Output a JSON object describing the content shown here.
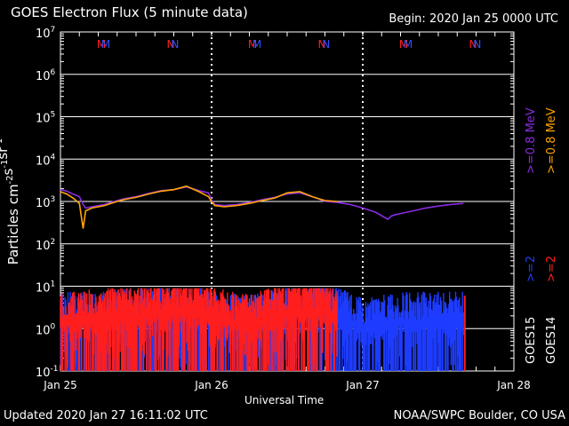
{
  "title": "GOES Electron Flux (5 minute data)",
  "begin": "Begin: 2020 Jan 25 0000 UTC",
  "updated": "Updated 2020 Jan 27 16:11:02 UTC",
  "credit": "NOAA/SWPC Boulder, CO USA",
  "colors": {
    "goes15_08": "#8a2be2",
    "goes14_08": "#ffa500",
    "goes15_2": "#1e3cff",
    "goes14_2": "#ff1e1e",
    "mn_m": "#ff2020",
    "mn_n": "#3050ff"
  },
  "chart_data": {
    "type": "line",
    "xlabel": "Universal Time",
    "ylabel": "Particles cm^-2 s^-1 sr^-1",
    "yscale": "log",
    "ylim": [
      0.1,
      10000000
    ],
    "xlim": [
      0,
      72
    ],
    "x_units": "hours since 2020 Jan 25 00:00 UTC",
    "xticks": [
      "Jan 25",
      "Jan 26",
      "Jan 27",
      "Jan 28"
    ],
    "yticks": [
      "10^-1",
      "10^0",
      "10^1",
      "10^2",
      "10^3",
      "10^4",
      "10^5",
      "10^6",
      "10^7"
    ],
    "threshold": 1000,
    "legend_right": [
      {
        "group": "GOES15",
        "energies": [
          ">=2",
          ">=0.8 MeV"
        ]
      },
      {
        "group": "GOES14",
        "energies": [
          ">=2",
          ">=0.8 MeV"
        ]
      }
    ],
    "markers": {
      "labels": [
        "M",
        "M",
        "N",
        "N"
      ]
    },
    "series": [
      {
        "name": "GOES15 >=0.8 MeV",
        "x": [
          0,
          1,
          2,
          3,
          3.6,
          4,
          5,
          6,
          7,
          8,
          9,
          10,
          12,
          14,
          16,
          18,
          20,
          22,
          23.5,
          24,
          24.5,
          26,
          28,
          30,
          32,
          34,
          36,
          38,
          40,
          42,
          44,
          46,
          48,
          50,
          52,
          52.5,
          53,
          54,
          56,
          58,
          60,
          62,
          64
        ],
        "y": [
          1900,
          1750,
          1500,
          1300,
          850,
          700,
          750,
          800,
          850,
          950,
          1050,
          1150,
          1300,
          1550,
          1800,
          1900,
          2200,
          1800,
          1600,
          1100,
          850,
          800,
          850,
          950,
          1100,
          1250,
          1500,
          1600,
          1300,
          1000,
          950,
          850,
          700,
          560,
          380,
          450,
          480,
          520,
          600,
          700,
          780,
          850,
          900
        ]
      },
      {
        "name": "GOES14 >=0.8 MeV",
        "x": [
          0,
          1,
          2,
          3,
          3.6,
          4,
          5,
          6,
          7,
          8,
          9,
          10,
          12,
          14,
          16,
          18,
          20,
          22,
          23.5,
          24,
          24.5,
          26,
          28,
          30,
          32,
          34,
          36,
          38,
          40,
          42,
          44
        ],
        "y": [
          1700,
          1500,
          1200,
          900,
          230,
          600,
          700,
          750,
          800,
          900,
          1000,
          1100,
          1250,
          1500,
          1750,
          1900,
          2300,
          1700,
          1300,
          1000,
          800,
          750,
          800,
          900,
          1050,
          1200,
          1600,
          1700,
          1300,
          1050,
          1000
        ]
      },
      {
        "name": "GOES15 >=2 MeV",
        "x": [
          0,
          6,
          12,
          18,
          24,
          30,
          36,
          42,
          48,
          54,
          60,
          64
        ],
        "y": [
          3,
          3,
          4,
          5,
          3,
          2.5,
          4,
          5,
          2,
          3,
          3,
          3
        ]
      },
      {
        "name": "GOES14 >=2 MeV",
        "x": [
          0,
          6,
          12,
          18,
          24,
          30,
          36,
          42,
          44
        ],
        "y": [
          3,
          3.5,
          4,
          6,
          4,
          2.5,
          5,
          6,
          3
        ]
      }
    ]
  }
}
